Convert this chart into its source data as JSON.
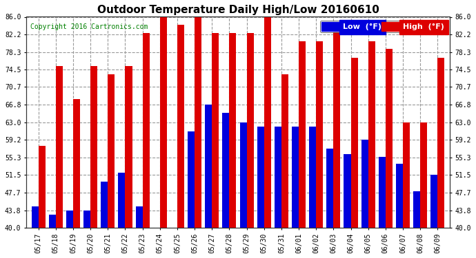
{
  "title": "Outdoor Temperature Daily High/Low 20160610",
  "copyright": "Copyright 2016 Cartronics.com",
  "legend_low": "Low  (°F)",
  "legend_high": "High  (°F)",
  "dates": [
    "05/17",
    "05/18",
    "05/19",
    "05/20",
    "05/21",
    "05/22",
    "05/23",
    "05/24",
    "05/25",
    "05/26",
    "05/27",
    "05/28",
    "05/29",
    "05/30",
    "05/31",
    "06/01",
    "06/02",
    "06/03",
    "06/04",
    "06/05",
    "06/06",
    "06/07",
    "06/08",
    "06/09"
  ],
  "high": [
    57.8,
    75.2,
    68.0,
    75.2,
    73.4,
    75.2,
    82.4,
    86.0,
    84.2,
    86.0,
    82.4,
    82.4,
    82.4,
    86.0,
    73.4,
    80.6,
    80.6,
    83.0,
    77.0,
    80.6,
    79.0,
    63.0,
    63.0,
    77.0
  ],
  "low": [
    44.6,
    42.8,
    43.8,
    43.8,
    50.0,
    52.0,
    44.6,
    40.0,
    40.0,
    61.0,
    66.8,
    65.0,
    63.0,
    62.0,
    62.0,
    62.0,
    62.0,
    57.2,
    56.0,
    59.2,
    55.4,
    54.0,
    48.0,
    51.5
  ],
  "ylim": [
    40.0,
    86.0
  ],
  "yticks": [
    40.0,
    43.8,
    47.7,
    51.5,
    55.3,
    59.2,
    63.0,
    66.8,
    70.7,
    74.5,
    78.3,
    82.2,
    86.0
  ],
  "bar_width": 0.4,
  "low_color": "#0000dd",
  "high_color": "#dd0000",
  "bg_color": "#ffffff",
  "grid_color": "#999999",
  "title_fontsize": 11,
  "copyright_fontsize": 7,
  "tick_fontsize": 7,
  "legend_fontsize": 8
}
